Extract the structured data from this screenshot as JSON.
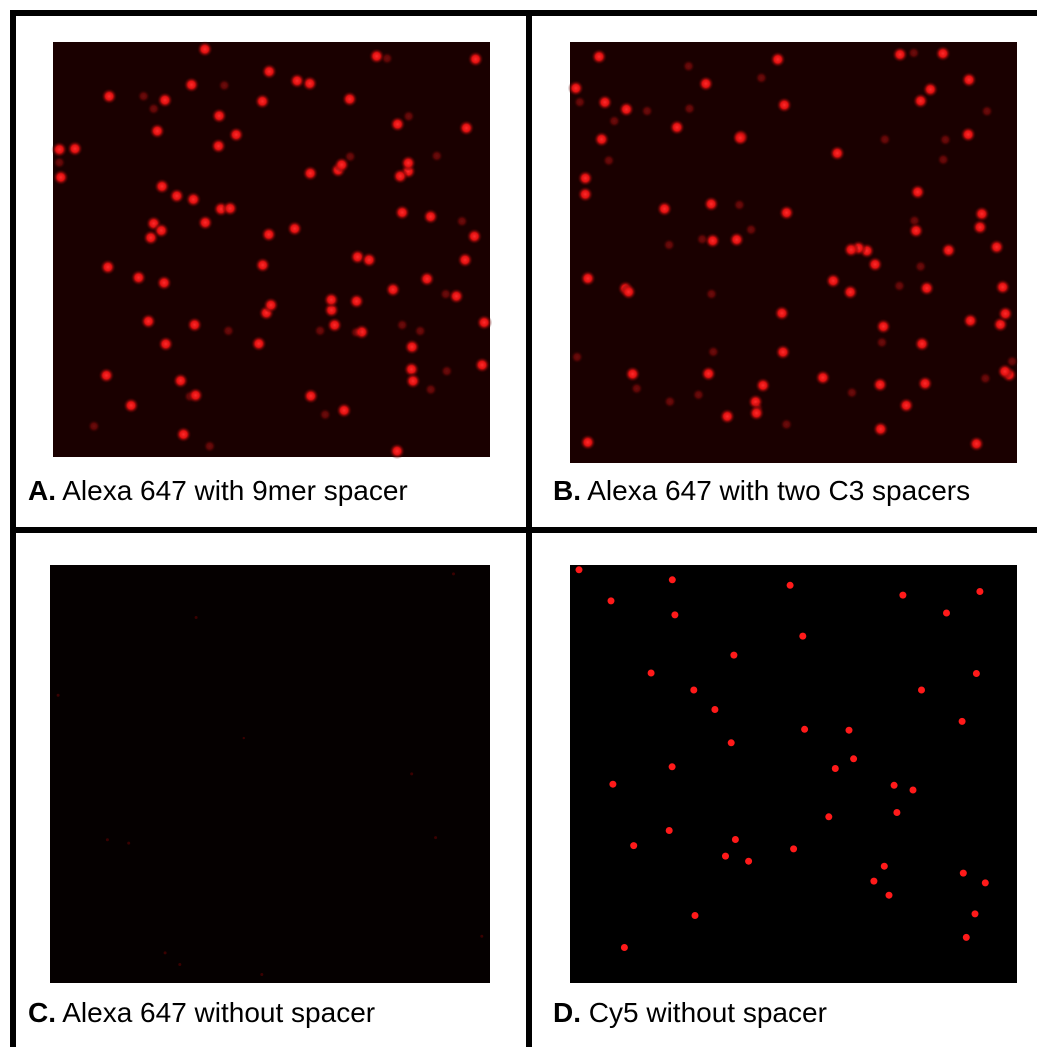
{
  "panels": [
    {
      "letter": "A.",
      "caption": "Alexa 647 with 9mer spacer"
    },
    {
      "letter": "B.",
      "caption": "Alexa 647 with two C3 spacers"
    },
    {
      "letter": "C.",
      "caption": "Alexa 647 without spacer"
    },
    {
      "letter": "D.",
      "caption": "Cy5 without spacer"
    }
  ]
}
